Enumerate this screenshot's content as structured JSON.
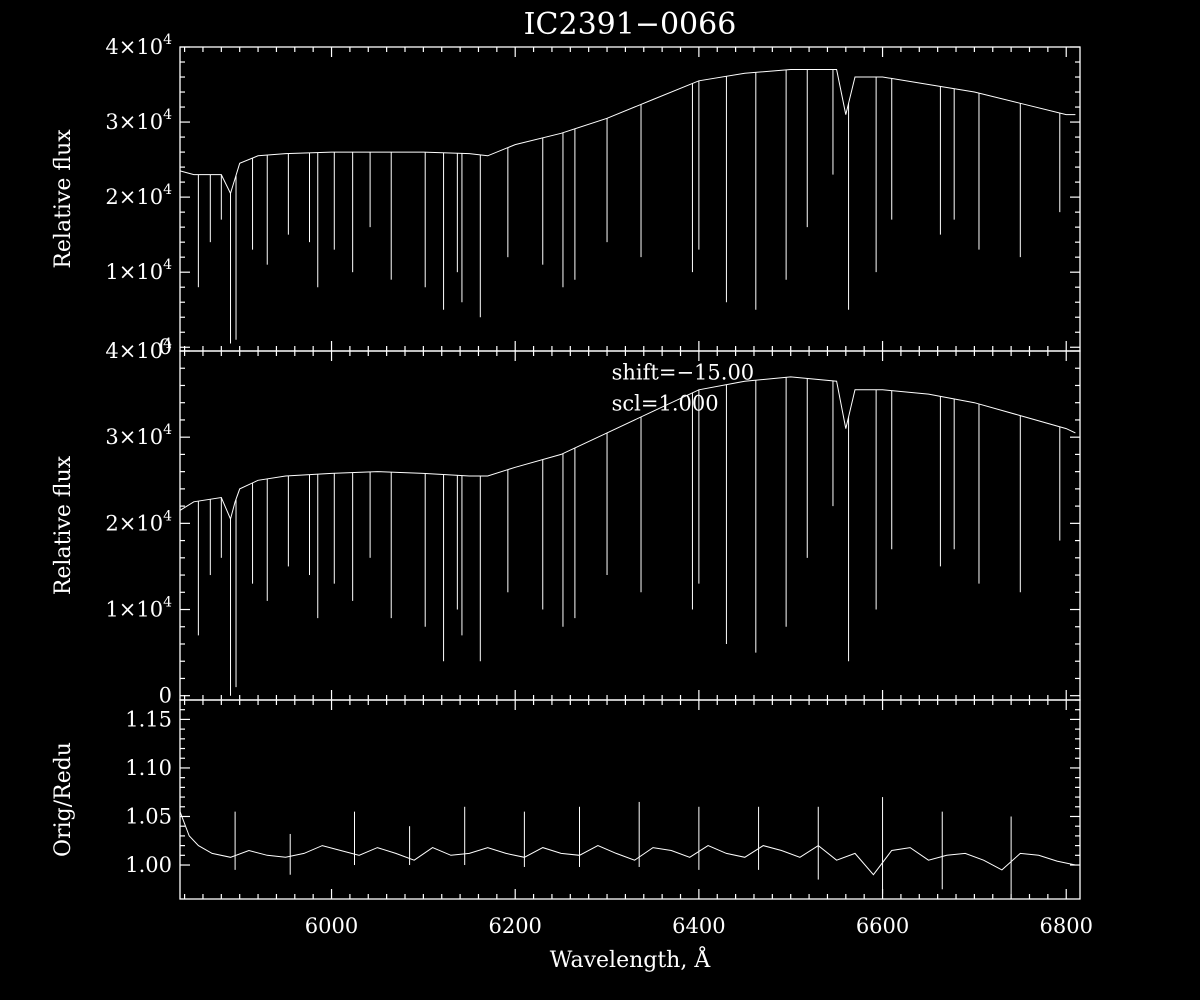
{
  "chart_data": [
    {
      "type": "line",
      "title": "IC2391−0066",
      "xlabel": "",
      "ylabel": "Relative flux",
      "xlim": [
        5835,
        6815
      ],
      "ylim": [
        -500,
        40000
      ],
      "y_ticks": [
        0,
        10000,
        20000,
        30000,
        40000
      ],
      "y_tick_labels": [
        {
          "mant": "0",
          "exp": ""
        },
        {
          "mant": "1×10",
          "exp": "4"
        },
        {
          "mant": "2×10",
          "exp": "4"
        },
        {
          "mant": "3×10",
          "exp": "4"
        },
        {
          "mant": "4×10",
          "exp": "4"
        }
      ],
      "annotations": [],
      "series": [
        {
          "x": [
            5835,
            5850,
            5880,
            5890,
            5895,
            5900,
            5920,
            5950,
            6000,
            6050,
            6100,
            6150,
            6170,
            6200,
            6250,
            6300,
            6350,
            6400,
            6450,
            6500,
            6550,
            6560,
            6570,
            6600,
            6650,
            6700,
            6750,
            6800,
            6810
          ],
          "y": [
            23500,
            23000,
            23000,
            20500,
            22500,
            24500,
            25500,
            25800,
            26000,
            26000,
            26000,
            25800,
            25500,
            27000,
            28500,
            30500,
            33000,
            35500,
            36500,
            37000,
            37000,
            31000,
            36000,
            36000,
            35000,
            34000,
            32500,
            31000,
            31000
          ]
        }
      ],
      "absorption_lines": [
        {
          "x": 5855,
          "y": 8000
        },
        {
          "x": 5868,
          "y": 14000
        },
        {
          "x": 5880,
          "y": 17000
        },
        {
          "x": 5890,
          "y": 500
        },
        {
          "x": 5896,
          "y": 1000
        },
        {
          "x": 5914,
          "y": 13000
        },
        {
          "x": 5930,
          "y": 11000
        },
        {
          "x": 5953,
          "y": 15000
        },
        {
          "x": 5976,
          "y": 14000
        },
        {
          "x": 5985,
          "y": 8000
        },
        {
          "x": 6003,
          "y": 13000
        },
        {
          "x": 6023,
          "y": 10000
        },
        {
          "x": 6042,
          "y": 16000
        },
        {
          "x": 6065,
          "y": 9000
        },
        {
          "x": 6102,
          "y": 8000
        },
        {
          "x": 6122,
          "y": 5000
        },
        {
          "x": 6137,
          "y": 10000
        },
        {
          "x": 6142,
          "y": 6000
        },
        {
          "x": 6162,
          "y": 4000
        },
        {
          "x": 6192,
          "y": 12000
        },
        {
          "x": 6230,
          "y": 11000
        },
        {
          "x": 6252,
          "y": 8000
        },
        {
          "x": 6265,
          "y": 9000
        },
        {
          "x": 6300,
          "y": 14000
        },
        {
          "x": 6337,
          "y": 12000
        },
        {
          "x": 6393,
          "y": 10000
        },
        {
          "x": 6400,
          "y": 13000
        },
        {
          "x": 6430,
          "y": 6000
        },
        {
          "x": 6462,
          "y": 5000
        },
        {
          "x": 6495,
          "y": 9000
        },
        {
          "x": 6518,
          "y": 16000
        },
        {
          "x": 6546,
          "y": 23000
        },
        {
          "x": 6563,
          "y": 5000
        },
        {
          "x": 6593,
          "y": 10000
        },
        {
          "x": 6610,
          "y": 17000
        },
        {
          "x": 6663,
          "y": 15000
        },
        {
          "x": 6678,
          "y": 17000
        },
        {
          "x": 6705,
          "y": 13000
        },
        {
          "x": 6750,
          "y": 12000
        },
        {
          "x": 6793,
          "y": 18000
        }
      ]
    },
    {
      "type": "line",
      "title": "",
      "xlabel": "",
      "ylabel": "Relative flux",
      "xlim": [
        5835,
        6815
      ],
      "ylim": [
        -500,
        40000
      ],
      "y_ticks": [
        0,
        10000,
        20000,
        30000,
        40000
      ],
      "y_tick_labels": [
        {
          "mant": "0",
          "exp": ""
        },
        {
          "mant": "1×10",
          "exp": "4"
        },
        {
          "mant": "2×10",
          "exp": "4"
        },
        {
          "mant": "3×10",
          "exp": "4"
        },
        {
          "mant": "4×10",
          "exp": "4"
        }
      ],
      "annotations": [
        {
          "text": "shift=−15.00",
          "x": 6305,
          "y": 36700
        },
        {
          "text": "scl=1.000",
          "x": 6305,
          "y": 33100
        }
      ],
      "series": [
        {
          "x": [
            5835,
            5850,
            5880,
            5890,
            5895,
            5900,
            5920,
            5950,
            6000,
            6050,
            6100,
            6150,
            6170,
            6200,
            6250,
            6300,
            6350,
            6400,
            6450,
            6500,
            6550,
            6560,
            6570,
            6600,
            6650,
            6700,
            6750,
            6800,
            6810
          ],
          "y": [
            21500,
            22500,
            23000,
            20500,
            22500,
            24000,
            25000,
            25500,
            25800,
            26000,
            25800,
            25500,
            25500,
            26500,
            28000,
            30500,
            33000,
            35500,
            36500,
            37000,
            36500,
            31000,
            35500,
            35500,
            35000,
            34000,
            32500,
            31000,
            30500
          ]
        }
      ],
      "absorption_lines": [
        {
          "x": 5855,
          "y": 7000
        },
        {
          "x": 5868,
          "y": 14000
        },
        {
          "x": 5880,
          "y": 16000
        },
        {
          "x": 5890,
          "y": 0
        },
        {
          "x": 5896,
          "y": 1000
        },
        {
          "x": 5914,
          "y": 13000
        },
        {
          "x": 5930,
          "y": 11000
        },
        {
          "x": 5953,
          "y": 15000
        },
        {
          "x": 5976,
          "y": 14000
        },
        {
          "x": 5985,
          "y": 9000
        },
        {
          "x": 6003,
          "y": 13000
        },
        {
          "x": 6023,
          "y": 11000
        },
        {
          "x": 6042,
          "y": 16000
        },
        {
          "x": 6065,
          "y": 9000
        },
        {
          "x": 6102,
          "y": 8000
        },
        {
          "x": 6122,
          "y": 4000
        },
        {
          "x": 6137,
          "y": 10000
        },
        {
          "x": 6142,
          "y": 7000
        },
        {
          "x": 6162,
          "y": 4000
        },
        {
          "x": 6192,
          "y": 12000
        },
        {
          "x": 6230,
          "y": 10000
        },
        {
          "x": 6252,
          "y": 8000
        },
        {
          "x": 6265,
          "y": 9000
        },
        {
          "x": 6300,
          "y": 14000
        },
        {
          "x": 6337,
          "y": 12000
        },
        {
          "x": 6393,
          "y": 10000
        },
        {
          "x": 6400,
          "y": 13000
        },
        {
          "x": 6430,
          "y": 6000
        },
        {
          "x": 6462,
          "y": 5000
        },
        {
          "x": 6495,
          "y": 8000
        },
        {
          "x": 6518,
          "y": 16000
        },
        {
          "x": 6546,
          "y": 22000
        },
        {
          "x": 6563,
          "y": 4000
        },
        {
          "x": 6593,
          "y": 10000
        },
        {
          "x": 6610,
          "y": 17000
        },
        {
          "x": 6663,
          "y": 15000
        },
        {
          "x": 6678,
          "y": 17000
        },
        {
          "x": 6705,
          "y": 13000
        },
        {
          "x": 6750,
          "y": 12000
        },
        {
          "x": 6793,
          "y": 18000
        }
      ]
    },
    {
      "type": "line",
      "title": "",
      "xlabel": "Wavelength, Å",
      "ylabel": "Orig/Redu",
      "xlim": [
        5835,
        6815
      ],
      "ylim": [
        0.965,
        1.17
      ],
      "x_ticks": [
        6000,
        6200,
        6400,
        6600,
        6800
      ],
      "x_tick_labels": [
        "6000",
        "6200",
        "6400",
        "6600",
        "6800"
      ],
      "y_ticks": [
        1.0,
        1.05,
        1.1,
        1.15
      ],
      "y_tick_labels": [
        {
          "mant": "1.00",
          "exp": ""
        },
        {
          "mant": "1.05",
          "exp": ""
        },
        {
          "mant": "1.10",
          "exp": ""
        },
        {
          "mant": "1.15",
          "exp": ""
        }
      ],
      "annotations": [],
      "series": [
        {
          "x": [
            5835,
            5845,
            5855,
            5870,
            5890,
            5910,
            5930,
            5950,
            5970,
            5990,
            6010,
            6030,
            6050,
            6070,
            6090,
            6110,
            6130,
            6150,
            6170,
            6190,
            6210,
            6230,
            6250,
            6270,
            6290,
            6310,
            6330,
            6350,
            6370,
            6390,
            6410,
            6430,
            6450,
            6470,
            6490,
            6510,
            6530,
            6550,
            6570,
            6590,
            6610,
            6630,
            6650,
            6670,
            6690,
            6710,
            6730,
            6750,
            6770,
            6790,
            6810
          ],
          "y": [
            1.055,
            1.03,
            1.02,
            1.012,
            1.008,
            1.015,
            1.01,
            1.008,
            1.012,
            1.02,
            1.015,
            1.01,
            1.018,
            1.012,
            1.005,
            1.018,
            1.01,
            1.012,
            1.018,
            1.012,
            1.008,
            1.018,
            1.012,
            1.01,
            1.02,
            1.012,
            1.005,
            1.018,
            1.015,
            1.008,
            1.02,
            1.012,
            1.008,
            1.02,
            1.015,
            1.008,
            1.02,
            1.005,
            1.012,
            0.99,
            1.015,
            1.018,
            1.005,
            1.01,
            1.012,
            1.005,
            0.995,
            1.012,
            1.01,
            1.004,
            1.0
          ]
        }
      ],
      "spikes": [
        {
          "x": 5895,
          "hi": 1.055,
          "lo": 0.995
        },
        {
          "x": 5955,
          "hi": 1.032,
          "lo": 0.99
        },
        {
          "x": 6025,
          "hi": 1.055,
          "lo": 1.0
        },
        {
          "x": 6085,
          "hi": 1.04,
          "lo": 1.0
        },
        {
          "x": 6145,
          "hi": 1.06,
          "lo": 1.0
        },
        {
          "x": 6210,
          "hi": 1.055,
          "lo": 0.998
        },
        {
          "x": 6270,
          "hi": 1.06,
          "lo": 0.998
        },
        {
          "x": 6335,
          "hi": 1.065,
          "lo": 0.998
        },
        {
          "x": 6400,
          "hi": 1.06,
          "lo": 0.995
        },
        {
          "x": 6465,
          "hi": 1.06,
          "lo": 0.995
        },
        {
          "x": 6530,
          "hi": 1.06,
          "lo": 0.985
        },
        {
          "x": 6600,
          "hi": 1.07,
          "lo": 0.97
        },
        {
          "x": 6665,
          "hi": 1.055,
          "lo": 0.975
        },
        {
          "x": 6740,
          "hi": 1.05,
          "lo": 0.97
        }
      ]
    }
  ]
}
